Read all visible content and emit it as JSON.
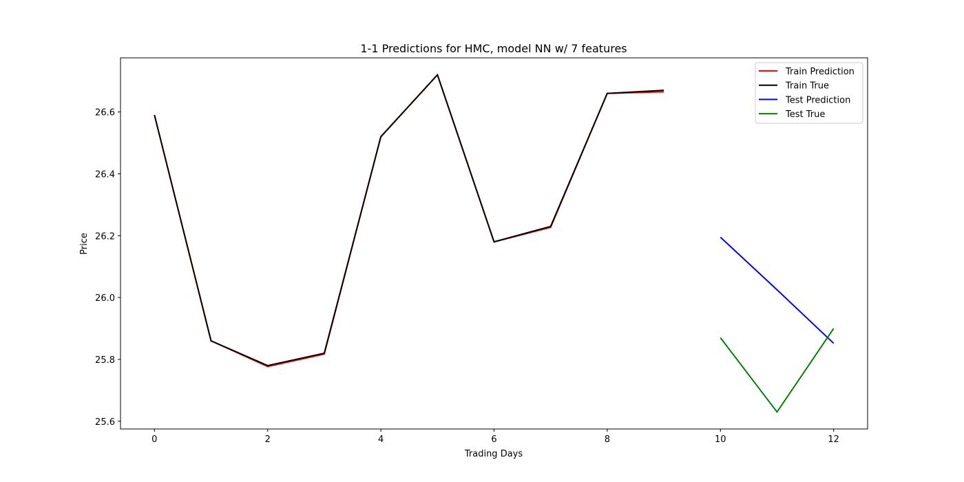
{
  "chart_data": {
    "type": "line",
    "title": "1-1 Predictions for HMC, model NN w/ 7 features",
    "xlabel": "Trading Days",
    "ylabel": "Price",
    "xlim": [
      -0.6,
      12.6
    ],
    "ylim": [
      25.575,
      26.775
    ],
    "xticks": [
      0,
      2,
      4,
      6,
      8,
      10,
      12
    ],
    "yticks": [
      25.6,
      25.8,
      26.0,
      26.2,
      26.4,
      26.6
    ],
    "ytick_labels": [
      "25.6",
      "25.8",
      "26.0",
      "26.2",
      "26.4",
      "26.6"
    ],
    "grid": false,
    "legend_position": "top-right",
    "series": [
      {
        "name": "Train Prediction",
        "color": "#ff0000",
        "x": [
          0,
          1,
          2,
          3,
          4,
          5,
          6,
          7,
          8,
          9
        ],
        "y": [
          26.59,
          25.86,
          25.777,
          25.817,
          26.52,
          26.72,
          26.18,
          26.227,
          26.66,
          26.665
        ]
      },
      {
        "name": "Train True",
        "color": "#000000",
        "x": [
          0,
          1,
          2,
          3,
          4,
          5,
          6,
          7,
          8,
          9
        ],
        "y": [
          26.59,
          25.86,
          25.78,
          25.82,
          26.52,
          26.72,
          26.18,
          26.23,
          26.66,
          26.67
        ]
      },
      {
        "name": "Test Prediction",
        "color": "#0000ff",
        "x": [
          10,
          11,
          12
        ],
        "y": [
          26.195,
          26.025,
          25.852
        ]
      },
      {
        "name": "Test True",
        "color": "#008000",
        "x": [
          10,
          11,
          12
        ],
        "y": [
          25.87,
          25.63,
          25.9
        ]
      }
    ]
  }
}
